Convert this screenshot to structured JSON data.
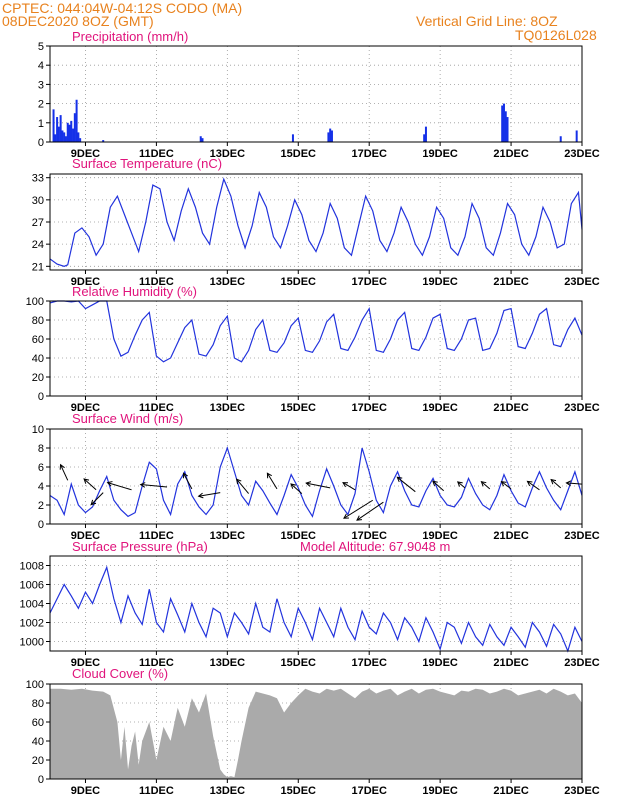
{
  "header": {
    "line1": "CPTEC:   044:04W-04:12S   CODO (MA)",
    "line2": "08DEC2020 8OZ (GMT)",
    "grid_note": "Vertical Grid Line: 8OZ",
    "run_id": "TQ0126L028"
  },
  "colors": {
    "header": "#e8821e",
    "title": "#e0147c",
    "series": "#2233dd",
    "bars": "#1530e8",
    "cloud": "#aaaaaa",
    "grid": "#999999"
  },
  "chart_data": [
    {
      "id": "precip",
      "type": "bar",
      "title": "Precipitation (mm/h)",
      "ylim": [
        0,
        5
      ],
      "yticks": [
        0,
        1,
        2,
        3,
        4,
        5
      ],
      "xtick_labels": [
        "9DEC",
        "11DEC",
        "13DEC",
        "15DEC",
        "17DEC",
        "19DEC",
        "21DEC",
        "23DEC"
      ],
      "xtick_days": [
        9,
        11,
        13,
        15,
        17,
        19,
        21,
        23
      ],
      "x_days": [
        8.1,
        8.15,
        8.2,
        8.25,
        8.3,
        8.35,
        8.4,
        8.45,
        8.5,
        8.55,
        8.6,
        8.65,
        8.7,
        8.75,
        8.8,
        8.85,
        9.5,
        12.25,
        12.3,
        14.85,
        15.85,
        15.9,
        15.95,
        18.55,
        18.6,
        20.75,
        20.8,
        20.85,
        20.9,
        22.4,
        22.85
      ],
      "values": [
        1.7,
        0.4,
        1.3,
        0.8,
        1.4,
        0.6,
        0.5,
        0.3,
        1.0,
        0.9,
        1.1,
        0.7,
        1.5,
        2.2,
        0.5,
        0.2,
        0.1,
        0.3,
        0.2,
        0.4,
        0.5,
        0.7,
        0.6,
        0.4,
        0.8,
        1.9,
        2.0,
        1.6,
        1.3,
        0.3,
        0.6
      ]
    },
    {
      "id": "temp",
      "type": "line",
      "title": "Surface Temperature (nC)",
      "ylim": [
        20.5,
        33.5
      ],
      "yticks": [
        21,
        24,
        27,
        30,
        33
      ],
      "xtick_labels": [
        "9DEC",
        "11DEC",
        "13DEC",
        "15DEC",
        "17DEC",
        "19DEC",
        "21DEC",
        "23DEC"
      ],
      "xtick_days": [
        9,
        11,
        13,
        15,
        17,
        19,
        21,
        23
      ],
      "x_days": [
        8.0,
        8.2,
        8.4,
        8.5,
        8.7,
        8.9,
        9.1,
        9.3,
        9.5,
        9.7,
        9.9,
        10.1,
        10.3,
        10.5,
        10.7,
        10.9,
        11.1,
        11.3,
        11.5,
        11.7,
        11.9,
        12.1,
        12.3,
        12.5,
        12.7,
        12.9,
        13.1,
        13.3,
        13.5,
        13.7,
        13.9,
        14.1,
        14.3,
        14.5,
        14.7,
        14.9,
        15.1,
        15.3,
        15.5,
        15.7,
        15.9,
        16.1,
        16.3,
        16.5,
        16.7,
        16.9,
        17.1,
        17.3,
        17.5,
        17.7,
        17.9,
        18.1,
        18.3,
        18.5,
        18.7,
        18.9,
        19.1,
        19.3,
        19.5,
        19.7,
        19.9,
        20.1,
        20.3,
        20.5,
        20.7,
        20.9,
        21.1,
        21.3,
        21.5,
        21.7,
        21.9,
        22.1,
        22.3,
        22.5,
        22.7,
        22.9,
        23.0
      ],
      "values": [
        22.0,
        21.3,
        21.0,
        21.2,
        25.5,
        26.2,
        25.0,
        22.5,
        24.0,
        29.0,
        30.5,
        28.0,
        25.5,
        23.0,
        27.0,
        32.0,
        31.5,
        27.0,
        24.5,
        28.5,
        31.5,
        29.0,
        25.5,
        24.0,
        29.0,
        32.8,
        30.5,
        26.5,
        23.5,
        26.5,
        31.0,
        29.0,
        25.0,
        23.5,
        26.5,
        30.0,
        28.0,
        24.5,
        23.0,
        25.5,
        29.5,
        27.5,
        23.5,
        22.5,
        26.5,
        30.5,
        28.5,
        24.5,
        23.0,
        25.5,
        29.0,
        27.0,
        24.0,
        22.5,
        25.0,
        29.0,
        27.5,
        23.5,
        22.5,
        25.0,
        29.5,
        27.5,
        23.5,
        22.5,
        25.5,
        29.5,
        28.0,
        24.0,
        22.5,
        25.0,
        29.0,
        27.0,
        23.5,
        24.0,
        29.5,
        31.0,
        26.0
      ]
    },
    {
      "id": "rh",
      "type": "line",
      "title": "Relative Humidity (%)",
      "ylim": [
        0,
        100
      ],
      "yticks": [
        0,
        20,
        40,
        60,
        80,
        100
      ],
      "xtick_labels": [
        "9DEC",
        "11DEC",
        "13DEC",
        "15DEC",
        "17DEC",
        "19DEC",
        "21DEC",
        "23DEC"
      ],
      "xtick_days": [
        9,
        11,
        13,
        15,
        17,
        19,
        21,
        23
      ],
      "x_days": [
        8.0,
        8.2,
        8.4,
        8.6,
        8.8,
        9.0,
        9.2,
        9.4,
        9.6,
        9.8,
        10.0,
        10.2,
        10.4,
        10.6,
        10.8,
        11.0,
        11.2,
        11.4,
        11.6,
        11.8,
        12.0,
        12.2,
        12.4,
        12.6,
        12.8,
        13.0,
        13.2,
        13.4,
        13.6,
        13.8,
        14.0,
        14.2,
        14.4,
        14.6,
        14.8,
        15.0,
        15.2,
        15.4,
        15.6,
        15.8,
        16.0,
        16.2,
        16.4,
        16.6,
        16.8,
        17.0,
        17.2,
        17.4,
        17.6,
        17.8,
        18.0,
        18.2,
        18.4,
        18.6,
        18.8,
        19.0,
        19.2,
        19.4,
        19.6,
        19.8,
        20.0,
        20.2,
        20.4,
        20.6,
        20.8,
        21.0,
        21.2,
        21.4,
        21.6,
        21.8,
        22.0,
        22.2,
        22.4,
        22.6,
        22.8,
        23.0
      ],
      "values": [
        98,
        100,
        100,
        99,
        100,
        92,
        96,
        100,
        100,
        60,
        42,
        46,
        64,
        80,
        88,
        42,
        36,
        40,
        56,
        72,
        80,
        44,
        42,
        54,
        74,
        84,
        40,
        36,
        48,
        70,
        80,
        48,
        46,
        56,
        74,
        82,
        48,
        46,
        58,
        78,
        86,
        50,
        48,
        62,
        80,
        92,
        48,
        46,
        60,
        80,
        88,
        50,
        48,
        62,
        82,
        86,
        50,
        48,
        60,
        80,
        82,
        48,
        50,
        66,
        90,
        92,
        52,
        50,
        66,
        86,
        92,
        54,
        52,
        70,
        82,
        64
      ]
    },
    {
      "id": "wind",
      "type": "line",
      "title": "Surface Wind (m/s)",
      "ylim": [
        0,
        10
      ],
      "yticks": [
        0,
        2,
        4,
        6,
        8,
        10
      ],
      "xtick_labels": [
        "9DEC",
        "11DEC",
        "13DEC",
        "15DEC",
        "17DEC",
        "19DEC",
        "21DEC",
        "23DEC"
      ],
      "xtick_days": [
        9,
        11,
        13,
        15,
        17,
        19,
        21,
        23
      ],
      "x_days": [
        8.0,
        8.2,
        8.4,
        8.6,
        8.8,
        9.0,
        9.2,
        9.4,
        9.6,
        9.8,
        10.0,
        10.2,
        10.4,
        10.6,
        10.8,
        11.0,
        11.2,
        11.4,
        11.6,
        11.8,
        12.0,
        12.2,
        12.4,
        12.6,
        12.8,
        13.0,
        13.2,
        13.4,
        13.6,
        13.8,
        14.0,
        14.2,
        14.4,
        14.6,
        14.8,
        15.0,
        15.2,
        15.4,
        15.6,
        15.8,
        16.0,
        16.2,
        16.4,
        16.6,
        16.8,
        17.0,
        17.2,
        17.4,
        17.6,
        17.8,
        18.0,
        18.2,
        18.4,
        18.6,
        18.8,
        19.0,
        19.2,
        19.4,
        19.6,
        19.8,
        20.0,
        20.2,
        20.4,
        20.6,
        20.8,
        21.0,
        21.2,
        21.4,
        21.6,
        21.8,
        22.0,
        22.2,
        22.4,
        22.6,
        22.8,
        23.0
      ],
      "values": [
        3.0,
        2.5,
        1.0,
        4.2,
        2.0,
        1.2,
        1.8,
        3.5,
        5.0,
        2.5,
        1.5,
        0.8,
        1.2,
        4.0,
        6.5,
        5.8,
        2.5,
        1.0,
        4.2,
        5.5,
        3.0,
        1.8,
        1.0,
        2.0,
        6.0,
        8.0,
        5.5,
        3.0,
        2.0,
        4.5,
        3.5,
        2.2,
        1.0,
        3.0,
        5.2,
        3.8,
        2.0,
        0.8,
        3.5,
        5.8,
        4.0,
        2.0,
        1.0,
        3.2,
        8.0,
        5.5,
        2.5,
        1.2,
        4.0,
        5.5,
        3.5,
        2.0,
        1.8,
        3.5,
        4.8,
        3.0,
        2.0,
        1.8,
        2.8,
        4.8,
        3.2,
        2.0,
        1.5,
        3.0,
        5.2,
        3.5,
        2.2,
        1.8,
        3.8,
        5.5,
        3.8,
        2.5,
        1.5,
        3.5,
        5.5,
        3.0
      ],
      "arrows": [
        {
          "x": 8.5,
          "y": 4.6,
          "u": -0.6,
          "v": 1.3
        },
        {
          "x": 9.3,
          "y": 3.6,
          "u": -1.0,
          "v": 0.9
        },
        {
          "x": 9.5,
          "y": 3.3,
          "u": -1.0,
          "v": -1.0
        },
        {
          "x": 10.3,
          "y": 3.6,
          "u": -2.0,
          "v": 0.6
        },
        {
          "x": 11.3,
          "y": 3.9,
          "u": -2.2,
          "v": 0.2
        },
        {
          "x": 12.0,
          "y": 3.7,
          "u": -0.7,
          "v": 1.3
        },
        {
          "x": 12.8,
          "y": 3.3,
          "u": -1.8,
          "v": -0.3
        },
        {
          "x": 13.6,
          "y": 3.2,
          "u": -1.0,
          "v": 1.2
        },
        {
          "x": 14.4,
          "y": 3.7,
          "u": -0.8,
          "v": 1.3
        },
        {
          "x": 15.1,
          "y": 3.2,
          "u": -0.9,
          "v": 0.8
        },
        {
          "x": 15.9,
          "y": 3.8,
          "u": -2.0,
          "v": 0.4
        },
        {
          "x": 16.6,
          "y": 3.6,
          "u": -1.0,
          "v": 0.6
        },
        {
          "x": 17.1,
          "y": 2.5,
          "u": -2.4,
          "v": -1.5
        },
        {
          "x": 17.4,
          "y": 2.3,
          "u": -2.2,
          "v": -1.5
        },
        {
          "x": 18.3,
          "y": 3.4,
          "u": -1.5,
          "v": 1.2
        },
        {
          "x": 19.1,
          "y": 3.5,
          "u": -0.9,
          "v": 0.8
        },
        {
          "x": 19.7,
          "y": 3.8,
          "u": -0.6,
          "v": 0.5
        },
        {
          "x": 20.4,
          "y": 3.7,
          "u": -0.7,
          "v": 0.6
        },
        {
          "x": 21.0,
          "y": 3.7,
          "u": -0.8,
          "v": 0.6
        },
        {
          "x": 21.8,
          "y": 3.6,
          "u": -1.0,
          "v": 0.7
        },
        {
          "x": 22.4,
          "y": 3.8,
          "u": -0.8,
          "v": 0.7
        },
        {
          "x": 23.0,
          "y": 4.2,
          "u": -1.3,
          "v": 0.1
        }
      ]
    },
    {
      "id": "pres",
      "type": "line",
      "title": "Surface Pressure (hPa)",
      "annotation": "Model Altitude: 67.9048 m",
      "ylim": [
        999,
        1009
      ],
      "yticks": [
        1000,
        1002,
        1004,
        1006,
        1008
      ],
      "xtick_labels": [
        "9DEC",
        "11DEC",
        "13DEC",
        "15DEC",
        "17DEC",
        "19DEC",
        "21DEC",
        "23DEC"
      ],
      "xtick_days": [
        9,
        11,
        13,
        15,
        17,
        19,
        21,
        23
      ],
      "x_days": [
        8.0,
        8.2,
        8.4,
        8.6,
        8.8,
        9.0,
        9.2,
        9.4,
        9.6,
        9.8,
        10.0,
        10.2,
        10.4,
        10.6,
        10.8,
        11.0,
        11.2,
        11.4,
        11.6,
        11.8,
        12.0,
        12.2,
        12.4,
        12.6,
        12.8,
        13.0,
        13.2,
        13.4,
        13.6,
        13.8,
        14.0,
        14.2,
        14.4,
        14.6,
        14.8,
        15.0,
        15.2,
        15.4,
        15.6,
        15.8,
        16.0,
        16.2,
        16.4,
        16.6,
        16.8,
        17.0,
        17.2,
        17.4,
        17.6,
        17.8,
        18.0,
        18.2,
        18.4,
        18.6,
        18.8,
        19.0,
        19.2,
        19.4,
        19.6,
        19.8,
        20.0,
        20.2,
        20.4,
        20.6,
        20.8,
        21.0,
        21.2,
        21.4,
        21.6,
        21.8,
        22.0,
        22.2,
        22.4,
        22.6,
        22.8,
        23.0
      ],
      "values": [
        1003.0,
        1004.5,
        1006.0,
        1004.8,
        1003.5,
        1005.2,
        1004.0,
        1006.0,
        1007.8,
        1004.5,
        1002.0,
        1004.8,
        1003.0,
        1001.8,
        1005.5,
        1002.0,
        1001.0,
        1004.5,
        1002.8,
        1001.0,
        1004.0,
        1002.0,
        1000.5,
        1003.5,
        1003.0,
        1000.5,
        1003.0,
        1002.0,
        1000.8,
        1004.0,
        1001.5,
        1001.0,
        1004.5,
        1002.0,
        1000.5,
        1003.5,
        1002.0,
        1000.2,
        1003.5,
        1002.0,
        1000.5,
        1003.5,
        1001.5,
        1000.2,
        1003.2,
        1001.5,
        1000.8,
        1003.0,
        1002.0,
        1000.2,
        1002.5,
        1001.5,
        1000.0,
        1002.5,
        1001.0,
        999.2,
        1002.0,
        1001.5,
        999.8,
        1002.0,
        1000.5,
        999.6,
        1001.8,
        1000.5,
        999.6,
        1001.5,
        1000.5,
        999.4,
        1002.0,
        1001.0,
        999.5,
        1001.8,
        1000.8,
        999.0,
        1001.5,
        1000.0
      ]
    },
    {
      "id": "cloud",
      "type": "area",
      "title": "Cloud Cover (%)",
      "ylim": [
        0,
        100
      ],
      "yticks": [
        0,
        20,
        40,
        60,
        80,
        100
      ],
      "xtick_labels": [
        "9DEC",
        "11DEC",
        "13DEC",
        "15DEC",
        "17DEC",
        "19DEC",
        "21DEC",
        "23DEC"
      ],
      "xtick_days": [
        9,
        11,
        13,
        15,
        17,
        19,
        21,
        23
      ],
      "x_days": [
        8.0,
        8.3,
        8.6,
        8.9,
        9.2,
        9.5,
        9.7,
        9.9,
        10.0,
        10.1,
        10.2,
        10.3,
        10.4,
        10.5,
        10.6,
        10.8,
        11.0,
        11.2,
        11.4,
        11.6,
        11.8,
        12.0,
        12.2,
        12.4,
        12.6,
        12.8,
        12.9,
        13.0,
        13.1,
        13.2,
        13.3,
        13.4,
        13.6,
        13.8,
        14.0,
        14.2,
        14.4,
        14.6,
        14.8,
        15.0,
        15.2,
        15.4,
        15.6,
        15.8,
        16.0,
        16.2,
        16.4,
        16.6,
        16.8,
        17.0,
        17.2,
        17.4,
        17.6,
        17.8,
        18.0,
        18.2,
        18.4,
        18.6,
        18.8,
        19.0,
        19.2,
        19.4,
        19.6,
        19.8,
        20.0,
        20.2,
        20.4,
        20.6,
        20.8,
        21.0,
        21.2,
        21.4,
        21.6,
        21.8,
        22.0,
        22.2,
        22.4,
        22.6,
        22.8,
        23.0
      ],
      "values": [
        95,
        95,
        94,
        95,
        93,
        92,
        88,
        60,
        20,
        55,
        10,
        35,
        50,
        15,
        40,
        60,
        20,
        55,
        40,
        75,
        55,
        85,
        70,
        90,
        45,
        10,
        5,
        2,
        3,
        2,
        20,
        40,
        75,
        92,
        90,
        88,
        85,
        70,
        80,
        88,
        95,
        92,
        90,
        95,
        93,
        95,
        90,
        85,
        92,
        95,
        90,
        93,
        95,
        88,
        92,
        95,
        90,
        94,
        95,
        92,
        90,
        88,
        93,
        92,
        95,
        94,
        90,
        92,
        95,
        93,
        88,
        90,
        92,
        94,
        90,
        95,
        92,
        88,
        90,
        80
      ]
    }
  ]
}
